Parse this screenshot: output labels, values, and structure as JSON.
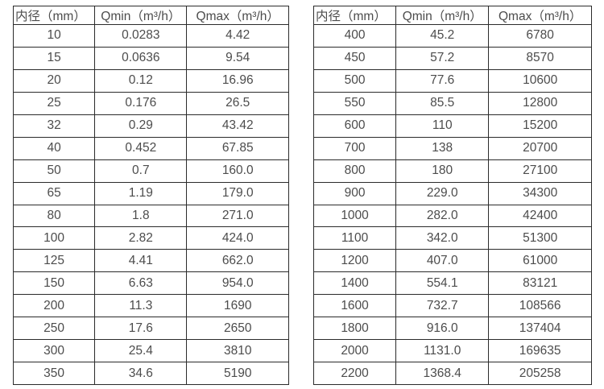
{
  "tables": [
    {
      "name": "flow-table-small-diameters",
      "headers": [
        "内径（mm）",
        "Qmin（m³/h）",
        "Qmax（m³/h）"
      ],
      "rows": [
        [
          "10",
          "0.0283",
          "4.42"
        ],
        [
          "15",
          "0.0636",
          "9.54"
        ],
        [
          "20",
          "0.12",
          "16.96"
        ],
        [
          "25",
          "0.176",
          "26.5"
        ],
        [
          "32",
          "0.29",
          "43.42"
        ],
        [
          "40",
          "0.452",
          "67.85"
        ],
        [
          "50",
          "0.7",
          "160.0"
        ],
        [
          "65",
          "1.19",
          "179.0"
        ],
        [
          "80",
          "1.8",
          "271.0"
        ],
        [
          "100",
          "2.82",
          "424.0"
        ],
        [
          "125",
          "4.41",
          "662.0"
        ],
        [
          "150",
          "6.63",
          "954.0"
        ],
        [
          "200",
          "11.3",
          "1690"
        ],
        [
          "250",
          "17.6",
          "2650"
        ],
        [
          "300",
          "25.4",
          "3810"
        ],
        [
          "350",
          "34.6",
          "5190"
        ]
      ]
    },
    {
      "name": "flow-table-large-diameters",
      "headers": [
        "内径（mm）",
        "Qmin（m³/h）",
        "Qmax（m³/h）"
      ],
      "rows": [
        [
          "400",
          "45.2",
          "6780"
        ],
        [
          "450",
          "57.2",
          "8570"
        ],
        [
          "500",
          "77.6",
          "10600"
        ],
        [
          "550",
          "85.5",
          "12800"
        ],
        [
          "600",
          "110",
          "15200"
        ],
        [
          "700",
          "138",
          "20700"
        ],
        [
          "800",
          "180",
          "27100"
        ],
        [
          "900",
          "229.0",
          "34300"
        ],
        [
          "1000",
          "282.0",
          "42400"
        ],
        [
          "1100",
          "342.0",
          "51300"
        ],
        [
          "1200",
          "407.0",
          "61000"
        ],
        [
          "1400",
          "554.1",
          "83121"
        ],
        [
          "1600",
          "732.7",
          "108566"
        ],
        [
          "1800",
          "916.0",
          "137404"
        ],
        [
          "2000",
          "1131.0",
          "169635"
        ],
        [
          "2200",
          "1368.4",
          "205258"
        ]
      ]
    }
  ],
  "colors": {
    "text": "#4c4c4c",
    "border": "#2b2b2b",
    "background": "#ffffff"
  }
}
